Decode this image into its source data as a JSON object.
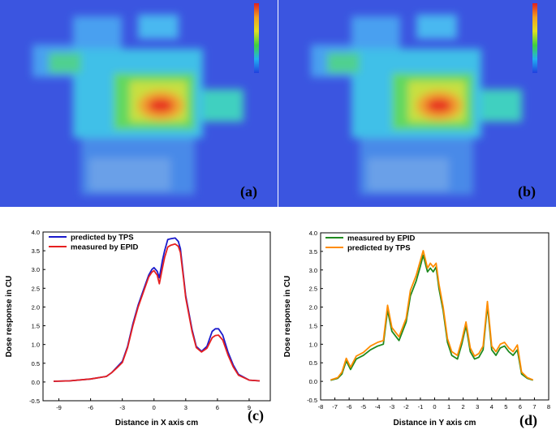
{
  "panels": {
    "a": {
      "label": "(a)"
    },
    "b": {
      "label": "(b)"
    },
    "c": {
      "label": "(c)"
    },
    "d": {
      "label": "(d)"
    }
  },
  "colors": {
    "tps_c": "#1a1acc",
    "epid_c": "#e62020",
    "epid_d": "#1f8a1f",
    "tps_d": "#ff8c00"
  },
  "chart_data": [
    {
      "type": "line",
      "id": "c",
      "title": "",
      "xlabel": "Distance in X axis cm",
      "ylabel": "Dose response in CU",
      "xlim": [
        -10.5,
        11
      ],
      "ylim": [
        -0.5,
        4.0
      ],
      "xticks": [
        -9,
        -6,
        -3,
        0,
        3,
        6,
        9
      ],
      "yticks": [
        -0.5,
        0.0,
        0.5,
        1.0,
        1.5,
        2.0,
        2.5,
        3.0,
        3.5,
        4.0
      ],
      "legend": "top-left",
      "series": [
        {
          "name": "predicted by TPS",
          "color": "#1a1acc",
          "x": [
            -9.5,
            -8,
            -6,
            -4.5,
            -4,
            -3.5,
            -3,
            -2.5,
            -2,
            -1.5,
            -1,
            -0.5,
            -0.2,
            0,
            0.3,
            0.5,
            0.8,
            1,
            1.3,
            1.6,
            2,
            2.3,
            2.5,
            2.8,
            3,
            3.3,
            3.6,
            4,
            4.5,
            5,
            5.5,
            5.8,
            6.1,
            6.5,
            7,
            7.5,
            8,
            9,
            10
          ],
          "y": [
            0.02,
            0.03,
            0.08,
            0.15,
            0.25,
            0.4,
            0.55,
            0.95,
            1.55,
            2.05,
            2.45,
            2.85,
            3.0,
            3.05,
            2.95,
            2.78,
            3.25,
            3.5,
            3.8,
            3.82,
            3.84,
            3.75,
            3.55,
            2.8,
            2.3,
            1.85,
            1.4,
            0.95,
            0.82,
            0.95,
            1.35,
            1.42,
            1.42,
            1.25,
            0.8,
            0.45,
            0.2,
            0.05,
            0.03
          ]
        },
        {
          "name": "measured by EPID",
          "color": "#e62020",
          "x": [
            -9.5,
            -8,
            -6,
            -4.5,
            -4,
            -3.5,
            -3,
            -2.5,
            -2,
            -1.5,
            -1,
            -0.5,
            -0.2,
            0,
            0.3,
            0.5,
            0.8,
            1,
            1.3,
            1.6,
            2,
            2.3,
            2.5,
            2.8,
            3,
            3.3,
            3.6,
            4,
            4.5,
            5,
            5.5,
            5.8,
            6.1,
            6.5,
            7,
            7.5,
            8,
            9,
            10
          ],
          "y": [
            0.02,
            0.03,
            0.08,
            0.15,
            0.25,
            0.38,
            0.52,
            0.92,
            1.5,
            2.0,
            2.4,
            2.8,
            2.93,
            2.97,
            2.85,
            2.62,
            3.05,
            3.32,
            3.6,
            3.65,
            3.68,
            3.62,
            3.45,
            2.75,
            2.25,
            1.8,
            1.35,
            0.92,
            0.8,
            0.9,
            1.18,
            1.24,
            1.25,
            1.12,
            0.72,
            0.4,
            0.18,
            0.05,
            0.03
          ]
        }
      ]
    },
    {
      "type": "line",
      "id": "d",
      "title": "",
      "xlabel": "Distance in Y axis cm",
      "ylabel": "Dose response in CU",
      "xlim": [
        -8,
        8
      ],
      "ylim": [
        -0.5,
        4.0
      ],
      "xticks": [
        -8,
        -7,
        -6,
        -5,
        -4,
        -3,
        -2,
        -1,
        0,
        1,
        2,
        3,
        4,
        5,
        6,
        7,
        8
      ],
      "yticks": [
        -0.5,
        0.0,
        0.5,
        1.0,
        1.5,
        2.0,
        2.5,
        3.0,
        3.5,
        4.0
      ],
      "legend": "top-left",
      "series": [
        {
          "name": "measured by EPID",
          "color": "#1f8a1f",
          "x": [
            -7.3,
            -6.8,
            -6.5,
            -6.2,
            -5.9,
            -5.5,
            -5.0,
            -4.5,
            -4.0,
            -3.6,
            -3.3,
            -3.0,
            -2.5,
            -2.0,
            -1.7,
            -1.3,
            -1.0,
            -0.8,
            -0.5,
            -0.3,
            -0.1,
            0.1,
            0.3,
            0.6,
            0.9,
            1.2,
            1.6,
            1.9,
            2.2,
            2.5,
            2.8,
            3.1,
            3.4,
            3.7,
            4.0,
            4.3,
            4.6,
            4.9,
            5.2,
            5.5,
            5.8,
            6.1,
            6.5,
            6.9
          ],
          "y": [
            0.03,
            0.08,
            0.2,
            0.55,
            0.32,
            0.6,
            0.7,
            0.85,
            0.95,
            1.0,
            1.92,
            1.35,
            1.1,
            1.6,
            2.3,
            2.7,
            3.1,
            3.4,
            2.95,
            3.05,
            2.95,
            3.08,
            2.5,
            1.9,
            1.05,
            0.7,
            0.6,
            1.0,
            1.5,
            0.8,
            0.6,
            0.65,
            0.85,
            2.05,
            0.85,
            0.7,
            0.9,
            0.95,
            0.8,
            0.7,
            0.85,
            0.2,
            0.08,
            0.03
          ]
        },
        {
          "name": "predicted by TPS",
          "color": "#ff8c00",
          "x": [
            -7.3,
            -6.8,
            -6.5,
            -6.2,
            -5.9,
            -5.5,
            -5.0,
            -4.5,
            -4.0,
            -3.6,
            -3.3,
            -3.0,
            -2.5,
            -2.0,
            -1.7,
            -1.3,
            -1.0,
            -0.8,
            -0.5,
            -0.3,
            -0.1,
            0.1,
            0.3,
            0.6,
            0.9,
            1.2,
            1.6,
            1.9,
            2.2,
            2.5,
            2.8,
            3.1,
            3.4,
            3.7,
            4.0,
            4.3,
            4.6,
            4.9,
            5.2,
            5.5,
            5.8,
            6.1,
            6.5,
            6.9
          ],
          "y": [
            0.04,
            0.1,
            0.25,
            0.62,
            0.38,
            0.68,
            0.78,
            0.95,
            1.05,
            1.1,
            2.05,
            1.45,
            1.2,
            1.7,
            2.45,
            2.85,
            3.25,
            3.52,
            3.05,
            3.18,
            3.08,
            3.18,
            2.62,
            2.0,
            1.15,
            0.8,
            0.7,
            1.1,
            1.6,
            0.9,
            0.68,
            0.75,
            0.95,
            2.15,
            0.95,
            0.8,
            1.0,
            1.05,
            0.9,
            0.8,
            0.98,
            0.25,
            0.1,
            0.04
          ]
        }
      ]
    }
  ]
}
